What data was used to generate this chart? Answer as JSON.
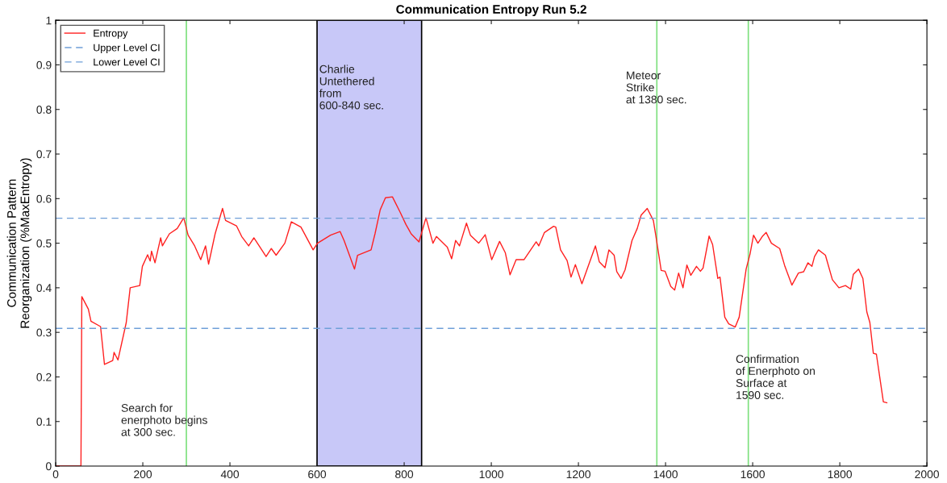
{
  "chart_data": {
    "type": "line",
    "title": "Communication Entropy Run 5.2",
    "ylabel": "Communication Pattern\nReorganization (%MaxEntropy)",
    "xlim": [
      0,
      2000
    ],
    "xticks": [
      0,
      200,
      400,
      600,
      800,
      1000,
      1200,
      1400,
      1600,
      1800,
      2000
    ],
    "ylim": [
      0,
      1
    ],
    "yticks": [
      0,
      0.1,
      0.2,
      0.3,
      0.4,
      0.5,
      0.6,
      0.7,
      0.8,
      0.9,
      1
    ],
    "grid": false,
    "legend": "top left",
    "marker": "none",
    "series": [
      {
        "name": "Entropy",
        "color": "#ff2020",
        "line_style": "solid",
        "x": [
          0,
          58,
          60,
          75,
          81,
          103,
          112,
          131,
          134,
          143,
          162,
          171,
          193,
          199,
          211,
          217,
          220,
          228,
          241,
          245,
          261,
          279,
          294,
          304,
          319,
          333,
          344,
          351,
          366,
          383,
          390,
          415,
          427,
          443,
          455,
          483,
          495,
          506,
          526,
          541,
          563,
          591,
          601,
          631,
          653,
          662,
          686,
          693,
          724,
          733,
          745,
          757,
          773,
          791,
          804,
          816,
          834,
          850,
          866,
          874,
          899,
          909,
          918,
          927,
          943,
          952,
          971,
          986,
          1001,
          1019,
          1032,
          1043,
          1057,
          1075,
          1103,
          1109,
          1122,
          1143,
          1148,
          1159,
          1174,
          1183,
          1193,
          1208,
          1239,
          1248,
          1261,
          1270,
          1282,
          1288,
          1298,
          1307,
          1323,
          1335,
          1344,
          1358,
          1372,
          1378,
          1390,
          1399,
          1412,
          1421,
          1430,
          1440,
          1449,
          1458,
          1471,
          1480,
          1486,
          1500,
          1508,
          1520,
          1525,
          1536,
          1545,
          1560,
          1569,
          1585,
          1594,
          1602,
          1612,
          1622,
          1631,
          1643,
          1662,
          1674,
          1690,
          1705,
          1717,
          1727,
          1736,
          1742,
          1751,
          1767,
          1783,
          1798,
          1813,
          1825,
          1831,
          1843,
          1853,
          1862,
          1869,
          1877,
          1884,
          1900,
          1908
        ],
        "values": [
          0,
          0,
          0.38,
          0.352,
          0.325,
          0.313,
          0.228,
          0.237,
          0.255,
          0.238,
          0.322,
          0.4,
          0.405,
          0.448,
          0.474,
          0.46,
          0.482,
          0.456,
          0.512,
          0.494,
          0.521,
          0.533,
          0.557,
          0.518,
          0.494,
          0.463,
          0.494,
          0.453,
          0.521,
          0.578,
          0.551,
          0.539,
          0.515,
          0.494,
          0.512,
          0.47,
          0.488,
          0.473,
          0.5,
          0.548,
          0.536,
          0.485,
          0.5,
          0.518,
          0.526,
          0.506,
          0.442,
          0.473,
          0.485,
          0.521,
          0.575,
          0.602,
          0.604,
          0.569,
          0.542,
          0.521,
          0.503,
          0.557,
          0.5,
          0.515,
          0.491,
          0.465,
          0.506,
          0.494,
          0.545,
          0.518,
          0.5,
          0.519,
          0.463,
          0.504,
          0.479,
          0.429,
          0.463,
          0.463,
          0.503,
          0.494,
          0.524,
          0.538,
          0.536,
          0.485,
          0.461,
          0.424,
          0.452,
          0.409,
          0.494,
          0.458,
          0.445,
          0.485,
          0.473,
          0.436,
          0.421,
          0.44,
          0.506,
          0.533,
          0.563,
          0.578,
          0.551,
          0.515,
          0.439,
          0.437,
          0.403,
          0.395,
          0.433,
          0.4,
          0.451,
          0.428,
          0.448,
          0.437,
          0.444,
          0.516,
          0.497,
          0.421,
          0.424,
          0.334,
          0.319,
          0.312,
          0.334,
          0.442,
          0.476,
          0.518,
          0.5,
          0.515,
          0.524,
          0.5,
          0.488,
          0.448,
          0.406,
          0.433,
          0.436,
          0.456,
          0.448,
          0.47,
          0.485,
          0.473,
          0.418,
          0.4,
          0.405,
          0.397,
          0.43,
          0.442,
          0.421,
          0.346,
          0.322,
          0.253,
          0.251,
          0.144,
          0.142
        ]
      },
      {
        "name": "Upper Level CI",
        "color": "#6f9fd8",
        "line_style": "dashed",
        "x": [
          0,
          2000
        ],
        "values": [
          0.556,
          0.556
        ]
      },
      {
        "name": "Lower Level CI",
        "color": "#6f9fd8",
        "line_style": "dashed",
        "x": [
          0,
          2000
        ],
        "values": [
          0.309,
          0.309
        ]
      }
    ],
    "ref_lines": [
      {
        "axis": "x",
        "value": 300,
        "label": null,
        "color": "#7ee07e",
        "line_style": "solid"
      },
      {
        "axis": "x",
        "value": 1380,
        "label": null,
        "color": "#7ee07e",
        "line_style": "solid"
      },
      {
        "axis": "x",
        "value": 1590,
        "label": null,
        "color": "#7ee07e",
        "line_style": "solid"
      }
    ],
    "bands": [
      {
        "axis": "x",
        "from": 600,
        "to": 840,
        "label": null,
        "color": "#c8c8f8"
      }
    ],
    "annotations": [
      "Search for\nenerphoto begins\nat 300 sec.",
      "Charlie\nUntethered\nfrom\n600-840 sec.",
      "Meteor\nStrike\nat 1380 sec.",
      "Confirmation\nof Enerphoto on\nSurface at\n1590 sec."
    ]
  }
}
